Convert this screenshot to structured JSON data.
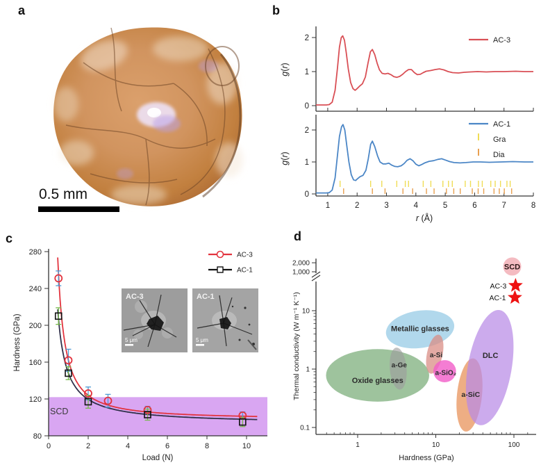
{
  "figure": {
    "panel_labels": {
      "a": "a",
      "b": "b",
      "c": "c",
      "d": "d"
    }
  },
  "panel_a": {
    "scale_bar_label": "0.5 mm"
  },
  "chart_data": [
    {
      "id": "b",
      "type": "line",
      "xlabel": "r (Å)",
      "ylabel": "g(r)",
      "xlim": [
        0.6,
        8
      ],
      "xticks": [
        1,
        2,
        3,
        4,
        5,
        6,
        7,
        8
      ],
      "subplots": [
        {
          "series": "AC-3",
          "color": "#d94f55",
          "yticks": [
            0,
            1,
            2
          ],
          "points": [
            [
              0.6,
              0.02
            ],
            [
              0.95,
              0.02
            ],
            [
              1.05,
              0.03
            ],
            [
              1.15,
              0.1
            ],
            [
              1.25,
              0.45
            ],
            [
              1.33,
              1.1
            ],
            [
              1.4,
              1.72
            ],
            [
              1.46,
              2.0
            ],
            [
              1.51,
              2.05
            ],
            [
              1.57,
              1.92
            ],
            [
              1.63,
              1.55
            ],
            [
              1.7,
              1.08
            ],
            [
              1.78,
              0.68
            ],
            [
              1.86,
              0.5
            ],
            [
              1.93,
              0.45
            ],
            [
              2.0,
              0.5
            ],
            [
              2.08,
              0.57
            ],
            [
              2.18,
              0.64
            ],
            [
              2.28,
              0.84
            ],
            [
              2.37,
              1.25
            ],
            [
              2.45,
              1.58
            ],
            [
              2.52,
              1.65
            ],
            [
              2.6,
              1.5
            ],
            [
              2.68,
              1.25
            ],
            [
              2.76,
              1.05
            ],
            [
              2.85,
              0.95
            ],
            [
              2.95,
              0.93
            ],
            [
              3.05,
              0.95
            ],
            [
              3.15,
              0.91
            ],
            [
              3.25,
              0.85
            ],
            [
              3.35,
              0.83
            ],
            [
              3.45,
              0.86
            ],
            [
              3.55,
              0.92
            ],
            [
              3.65,
              1.0
            ],
            [
              3.75,
              1.06
            ],
            [
              3.85,
              1.06
            ],
            [
              3.95,
              0.97
            ],
            [
              4.05,
              0.91
            ],
            [
              4.15,
              0.92
            ],
            [
              4.25,
              0.97
            ],
            [
              4.35,
              1.01
            ],
            [
              4.5,
              1.03
            ],
            [
              4.65,
              1.06
            ],
            [
              4.8,
              1.08
            ],
            [
              4.95,
              1.05
            ],
            [
              5.1,
              1.0
            ],
            [
              5.25,
              0.97
            ],
            [
              5.45,
              0.96
            ],
            [
              5.65,
              0.98
            ],
            [
              5.85,
              0.99
            ],
            [
              6.1,
              1.0
            ],
            [
              6.4,
              0.99
            ],
            [
              6.7,
              1.0
            ],
            [
              7.0,
              1.0
            ],
            [
              7.4,
              1.01
            ],
            [
              7.7,
              1.0
            ],
            [
              8.0,
              1.0
            ]
          ]
        },
        {
          "series": "AC-1",
          "color": "#4b86c6",
          "yticks": [
            0,
            1,
            2
          ],
          "points": [
            [
              0.6,
              0.03
            ],
            [
              0.95,
              0.03
            ],
            [
              1.05,
              0.04
            ],
            [
              1.15,
              0.12
            ],
            [
              1.25,
              0.5
            ],
            [
              1.33,
              1.2
            ],
            [
              1.4,
              1.8
            ],
            [
              1.47,
              2.1
            ],
            [
              1.52,
              2.17
            ],
            [
              1.58,
              2.0
            ],
            [
              1.65,
              1.5
            ],
            [
              1.72,
              1.0
            ],
            [
              1.8,
              0.6
            ],
            [
              1.88,
              0.44
            ],
            [
              1.95,
              0.42
            ],
            [
              2.02,
              0.48
            ],
            [
              2.1,
              0.54
            ],
            [
              2.2,
              0.58
            ],
            [
              2.3,
              0.74
            ],
            [
              2.38,
              1.1
            ],
            [
              2.46,
              1.55
            ],
            [
              2.52,
              1.65
            ],
            [
              2.6,
              1.48
            ],
            [
              2.7,
              1.18
            ],
            [
              2.78,
              1.0
            ],
            [
              2.88,
              0.94
            ],
            [
              2.98,
              0.94
            ],
            [
              3.08,
              0.96
            ],
            [
              3.18,
              0.9
            ],
            [
              3.28,
              0.86
            ],
            [
              3.38,
              0.85
            ],
            [
              3.5,
              0.88
            ],
            [
              3.6,
              0.95
            ],
            [
              3.7,
              1.05
            ],
            [
              3.8,
              1.1
            ],
            [
              3.9,
              1.04
            ],
            [
              4.0,
              0.93
            ],
            [
              4.1,
              0.88
            ],
            [
              4.2,
              0.92
            ],
            [
              4.3,
              0.97
            ],
            [
              4.45,
              1.02
            ],
            [
              4.6,
              1.04
            ],
            [
              4.75,
              1.08
            ],
            [
              4.88,
              1.1
            ],
            [
              5.0,
              1.06
            ],
            [
              5.15,
              1.01
            ],
            [
              5.3,
              0.98
            ],
            [
              5.5,
              0.97
            ],
            [
              5.7,
              0.98
            ],
            [
              5.95,
              1.0
            ],
            [
              6.2,
              1.0
            ],
            [
              6.5,
              0.99
            ],
            [
              6.9,
              1.0
            ],
            [
              7.3,
              1.01
            ],
            [
              7.7,
              1.0
            ],
            [
              8.0,
              1.0
            ]
          ],
          "reference_ticks": [
            {
              "label": "Gra",
              "color": "#f0dd55",
              "positions": [
                1.42,
                2.46,
                2.84,
                3.35,
                3.64,
                3.75,
                4.25,
                4.51,
                4.92,
                5.11,
                5.24,
                5.68,
                5.86,
                6.13,
                6.26,
                6.55,
                6.7,
                6.88,
                7.1,
                7.21
              ]
            },
            {
              "label": "Dia",
              "color": "#e8a050",
              "positions": [
                1.54,
                2.52,
                2.95,
                3.56,
                3.89,
                4.36,
                4.62,
                5.04,
                5.29,
                5.51,
                5.92,
                6.12,
                6.31,
                6.66,
                6.84,
                7.01,
                7.26
              ]
            }
          ]
        }
      ]
    },
    {
      "id": "c",
      "type": "scatter-line",
      "xlabel": "Load (N)",
      "ylabel": "Hardness (GPa)",
      "xlim": [
        0,
        11
      ],
      "ylim": [
        80,
        280
      ],
      "xticks": [
        0,
        2,
        4,
        6,
        8,
        10
      ],
      "yticks": [
        80,
        120,
        160,
        200,
        240,
        280
      ],
      "band": {
        "label": "SCD",
        "y_from": 80,
        "y_to": 122,
        "color": "#d9a6f2"
      },
      "series": [
        {
          "name": "AC-3",
          "color": "#e2333e",
          "marker": "circle",
          "error_color": "#4f9bd4",
          "points": [
            [
              0.5,
              251,
              8
            ],
            [
              1,
              162,
              12
            ],
            [
              2,
              126,
              7
            ],
            [
              3,
              118,
              7
            ],
            [
              5,
              108,
              4
            ],
            [
              9.8,
              102,
              4
            ]
          ],
          "fit": {
            "h_inf": 98,
            "amp": 64,
            "power": 1.3
          }
        },
        {
          "name": "AC-1",
          "color": "#30304a",
          "marker": "square",
          "error_color": "#76b84a",
          "points": [
            [
              0.5,
              210,
              9
            ],
            [
              1,
              148,
              7
            ],
            [
              2,
              117,
              7
            ],
            [
              5,
              103,
              6
            ],
            [
              9.8,
              95,
              5
            ]
          ],
          "fit": {
            "h_inf": 93,
            "amp": 55,
            "power": 1.05
          }
        }
      ],
      "insets": [
        {
          "label": "AC-3",
          "scale_bar": "5 μm"
        },
        {
          "label": "AC-1",
          "scale_bar": "5 μm"
        }
      ]
    },
    {
      "id": "d",
      "type": "scatter",
      "xlabel": "Hardness (GPa)",
      "ylabel": "Thermal conductivity (W m⁻¹ K⁻¹)",
      "xticks": [
        [
          1,
          "1"
        ],
        [
          10,
          "10"
        ],
        [
          100,
          "100"
        ]
      ],
      "yticks": [
        [
          0.1,
          "0.1"
        ],
        [
          1,
          "1"
        ],
        [
          10,
          "10"
        ],
        [
          1000,
          "1,000"
        ],
        [
          2000,
          "2,000"
        ]
      ],
      "axis_break": true,
      "regions": [
        {
          "label": "Oxide glasses",
          "bold": true,
          "hardness": 1.8,
          "k": 0.78,
          "rx_dec": 0.66,
          "ry_dec": 0.45,
          "rot": 0,
          "color": "#8db88c",
          "opacity": 0.85,
          "label_h": 1.8,
          "label_k": 0.64,
          "label_fs": 11
        },
        {
          "label": "Metallic glasses",
          "bold": true,
          "hardness": 6.3,
          "k": 4.8,
          "rx_dec": 0.44,
          "ry_dec": 0.32,
          "rot": -8,
          "color": "#a8d4ea",
          "opacity": 0.9,
          "label_h": 6.3,
          "label_k": 4.9,
          "label_fs": 11
        },
        {
          "label": "a-Ge",
          "bold": true,
          "hardness": 3.3,
          "k": 1.02,
          "rx_dec": 0.107,
          "ry_dec": 0.36,
          "rot": -5,
          "color": "#9c9c9c",
          "opacity": 0.62,
          "label_h": 3.4,
          "label_k": 1.18,
          "label_fs": 10
        },
        {
          "label": "a-Si",
          "bold": true,
          "hardness": 9.7,
          "k": 1.8,
          "rx_dec": 0.1,
          "ry_dec": 0.34,
          "rot": 12,
          "color": "#d98e86",
          "opacity": 0.75,
          "label_h": 10.1,
          "label_k": 1.75,
          "label_fs": 10
        },
        {
          "label": "a-SiO₂",
          "bold": true,
          "hardness": 13,
          "k": 0.92,
          "rx_dec": 0.145,
          "ry_dec": 0.19,
          "rot": 0,
          "color": "#f15cc8",
          "opacity": 0.8,
          "label_h": 13.4,
          "label_k": 0.87,
          "label_fs": 10
        },
        {
          "label": "a-SiC",
          "bold": true,
          "hardness": 27,
          "k": 0.36,
          "rx_dec": 0.16,
          "ry_dec": 0.63,
          "rot": 6,
          "color": "#eba06e",
          "opacity": 0.85,
          "label_h": 28,
          "label_k": 0.37,
          "label_fs": 10.5
        },
        {
          "label": "DLC",
          "bold": true,
          "hardness": 49,
          "k": 1.06,
          "rx_dec": 0.28,
          "ry_dec": 1.0,
          "rot": 10,
          "color": "#b98ae6",
          "opacity": 0.72,
          "label_h": 50,
          "label_k": 1.7,
          "label_fs": 11
        }
      ],
      "points": [
        {
          "label": "SCD",
          "marker": "circle",
          "hardness": 95,
          "k": 1500,
          "color": "#f3b7be",
          "text_color": "#2a1616"
        },
        {
          "label": "AC-3",
          "marker": "star",
          "hardness": 105,
          "k": 200,
          "color": "#ee1111"
        },
        {
          "label": "AC-1",
          "marker": "star",
          "hardness": 103,
          "k": 50,
          "color": "#ee1111"
        }
      ]
    }
  ]
}
